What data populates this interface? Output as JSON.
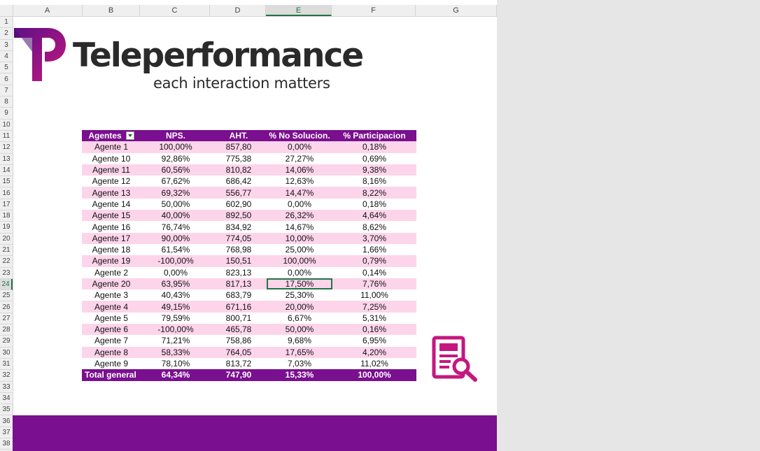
{
  "columns": [
    {
      "label": "A",
      "width": 100
    },
    {
      "label": "B",
      "width": 82
    },
    {
      "label": "C",
      "width": 100
    },
    {
      "label": "D",
      "width": 80
    },
    {
      "label": "E",
      "width": 94
    },
    {
      "label": "F",
      "width": 120
    },
    {
      "label": "G",
      "width": 116
    }
  ],
  "rows": [
    "1",
    "2",
    "3",
    "4",
    "5",
    "6",
    "7",
    "8",
    "9",
    "10",
    "11",
    "12",
    "13",
    "14",
    "15",
    "16",
    "17",
    "18",
    "19",
    "20",
    "21",
    "22",
    "23",
    "24",
    "25",
    "26",
    "27",
    "28",
    "29",
    "30",
    "31",
    "32",
    "33",
    "34",
    "35",
    "36",
    "37",
    "38"
  ],
  "active": {
    "column": "E",
    "row": "24"
  },
  "brand": {
    "name": "Teleperformance",
    "tagline": "each interaction matters",
    "colors": {
      "purple": "#7a0f8f",
      "magenta": "#c5177f",
      "dark": "#2a2a2a"
    }
  },
  "table": {
    "headers": [
      "Agentes",
      "NPS.",
      "AHT.",
      "% No Solucion.",
      "% Participacion"
    ],
    "rows": [
      [
        "Agente 1",
        "100,00%",
        "857,80",
        "0,00%",
        "0,18%"
      ],
      [
        "Agente 10",
        "92,86%",
        "775,38",
        "27,27%",
        "0,69%"
      ],
      [
        "Agente 11",
        "60,56%",
        "810,82",
        "14,06%",
        "9,38%"
      ],
      [
        "Agente 12",
        "67,62%",
        "686,42",
        "12,63%",
        "8,16%"
      ],
      [
        "Agente 13",
        "69,32%",
        "556,77",
        "14,47%",
        "8,22%"
      ],
      [
        "Agente 14",
        "50,00%",
        "602,90",
        "0,00%",
        "0,18%"
      ],
      [
        "Agente 15",
        "40,00%",
        "892,50",
        "26,32%",
        "4,64%"
      ],
      [
        "Agente 16",
        "76,74%",
        "834,92",
        "14,67%",
        "8,62%"
      ],
      [
        "Agente 17",
        "90,00%",
        "774,05",
        "10,00%",
        "3,70%"
      ],
      [
        "Agente 18",
        "61,54%",
        "768,98",
        "25,00%",
        "1,66%"
      ],
      [
        "Agente 19",
        "-100,00%",
        "150,51",
        "100,00%",
        "0,79%"
      ],
      [
        "Agente 2",
        "0,00%",
        "823,13",
        "0,00%",
        "0,14%"
      ],
      [
        "Agente 20",
        "63,95%",
        "817,13",
        "17,50%",
        "7,76%"
      ],
      [
        "Agente 3",
        "40,43%",
        "683,79",
        "25,30%",
        "11,00%"
      ],
      [
        "Agente 4",
        "49,15%",
        "671,16",
        "20,00%",
        "7,25%"
      ],
      [
        "Agente 5",
        "79,59%",
        "800,71",
        "6,67%",
        "5,31%"
      ],
      [
        "Agente 6",
        "-100,00%",
        "465,78",
        "50,00%",
        "0,16%"
      ],
      [
        "Agente 7",
        "71,21%",
        "758,86",
        "9,68%",
        "6,95%"
      ],
      [
        "Agente 8",
        "58,33%",
        "764,05",
        "17,65%",
        "4,20%"
      ],
      [
        "Agente 9",
        "78,10%",
        "813,72",
        "7,03%",
        "11,02%"
      ]
    ],
    "total": [
      "Total general",
      "64,34%",
      "747,90",
      "15,33%",
      "100,00%"
    ],
    "selected": {
      "row": 12,
      "col": 3
    }
  },
  "icons": {
    "filter": "filter-dropdown-icon",
    "report": "report-search-icon"
  }
}
